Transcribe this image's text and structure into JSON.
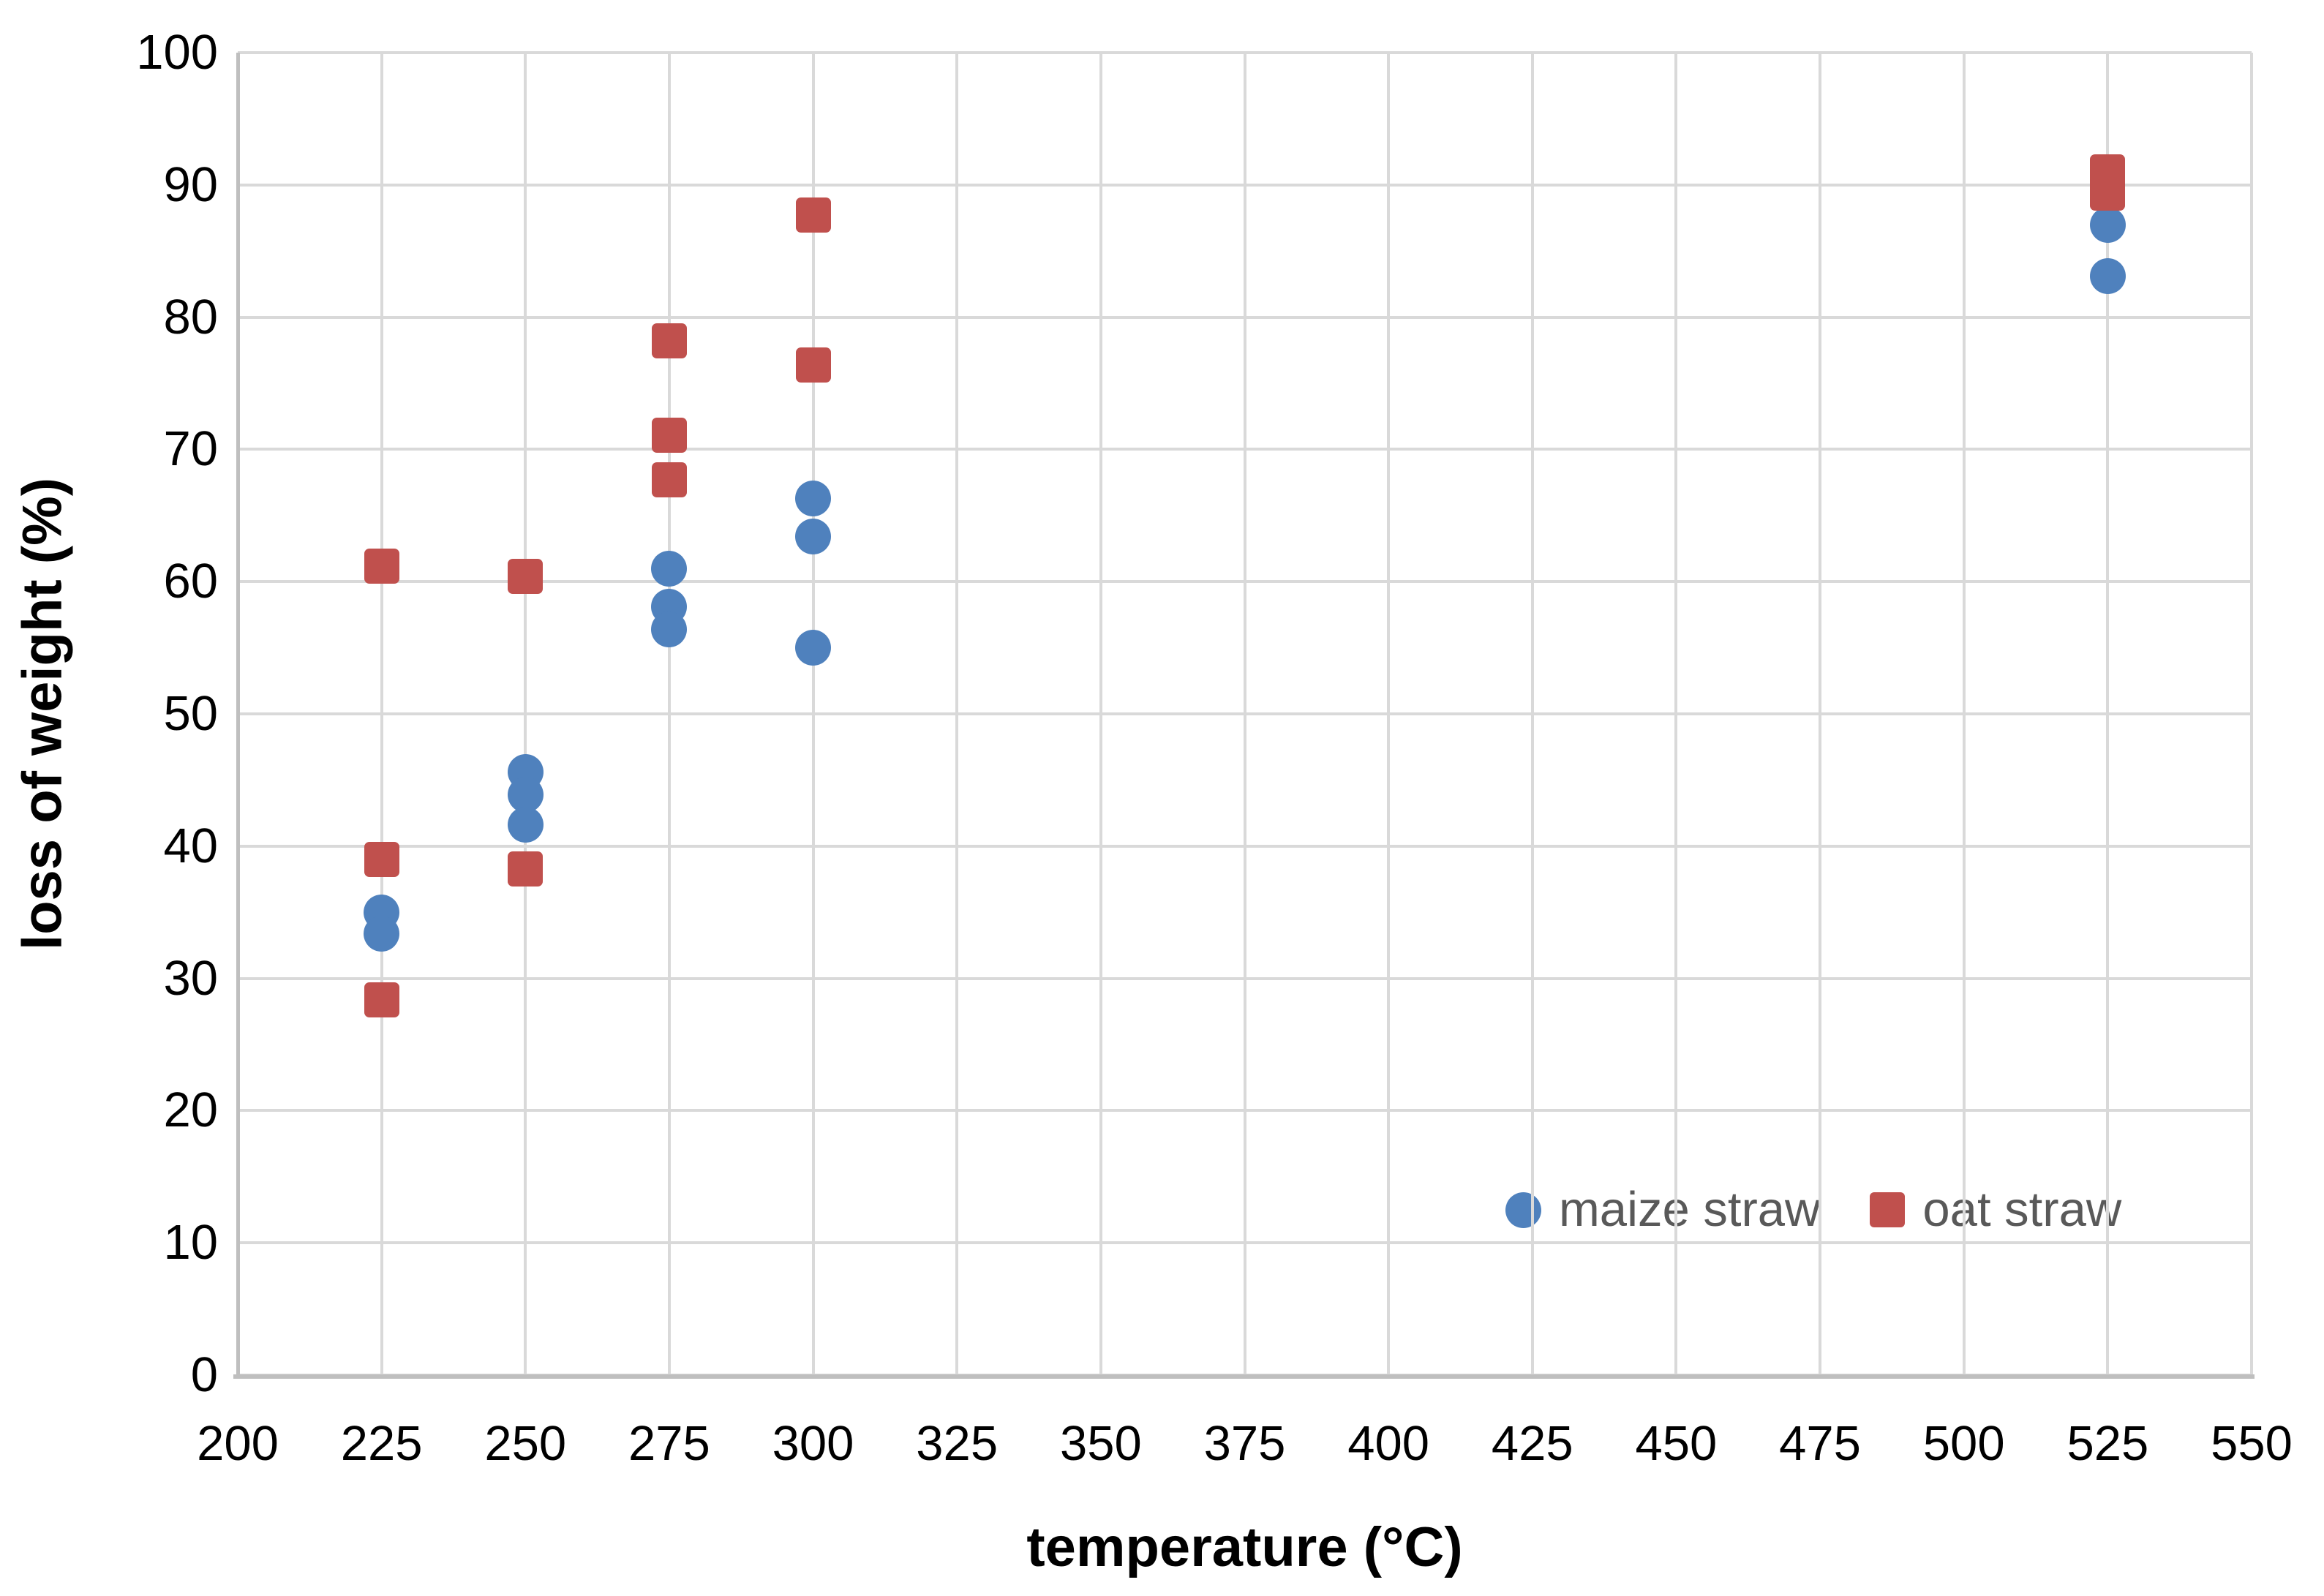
{
  "chart_data": {
    "type": "scatter",
    "title": "",
    "xlabel": "temperature (°C)",
    "ylabel": "loss of weight (%)",
    "xlim": [
      200,
      550
    ],
    "ylim": [
      0,
      100
    ],
    "xticks": [
      200,
      225,
      250,
      275,
      300,
      325,
      350,
      375,
      400,
      425,
      450,
      475,
      500,
      525,
      550
    ],
    "yticks": [
      0,
      10,
      20,
      30,
      40,
      50,
      60,
      70,
      80,
      90,
      100
    ],
    "grid": "both",
    "legend_position": "inside-bottom-right",
    "colors": {
      "gridline": "#d9d9d9",
      "axis_line": "#bfbfbf",
      "tick_text": "#000000",
      "legend_text": "#595959",
      "maize_straw": "#4f81bd",
      "oat_straw": "#c0504d"
    },
    "series": [
      {
        "name": "maize straw",
        "marker": "circle",
        "color": "#4f81bd",
        "points": [
          [
            225,
            35.0
          ],
          [
            225,
            33.4
          ],
          [
            250,
            45.6
          ],
          [
            250,
            43.9
          ],
          [
            250,
            41.6
          ],
          [
            275,
            61.0
          ],
          [
            275,
            58.1
          ],
          [
            275,
            56.4
          ],
          [
            300,
            66.3
          ],
          [
            300,
            63.4
          ],
          [
            300,
            55.0
          ],
          [
            525,
            87.0
          ],
          [
            525,
            83.1
          ]
        ]
      },
      {
        "name": "oat straw",
        "marker": "square",
        "color": "#c0504d",
        "points": [
          [
            225,
            61.2
          ],
          [
            225,
            39.0
          ],
          [
            225,
            28.4
          ],
          [
            250,
            60.4
          ],
          [
            250,
            38.3
          ],
          [
            275,
            78.2
          ],
          [
            275,
            71.1
          ],
          [
            275,
            67.7
          ],
          [
            300,
            87.7
          ],
          [
            300,
            76.4
          ],
          [
            525,
            91.0
          ],
          [
            525,
            89.4
          ]
        ]
      }
    ]
  }
}
